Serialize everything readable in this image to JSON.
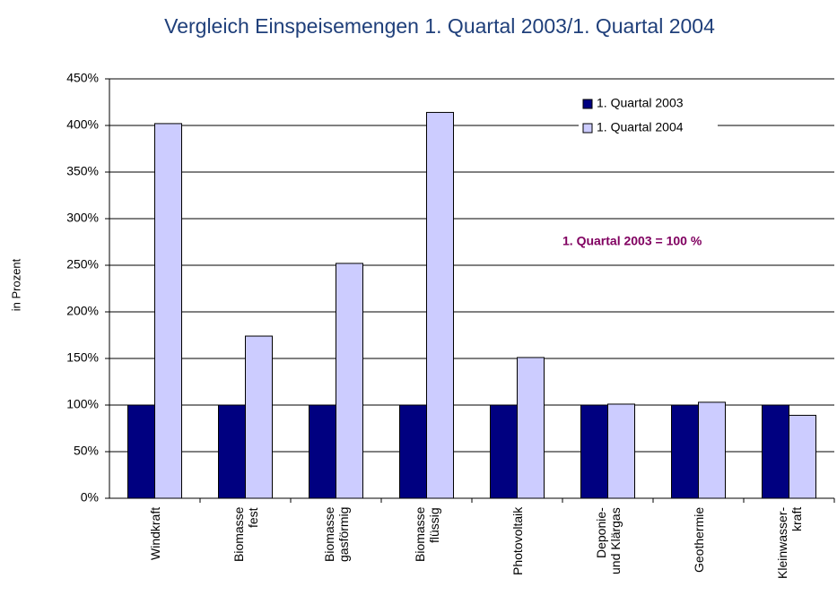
{
  "chart_data": {
    "type": "bar",
    "title": "Vergleich Einspeisemengen 1. Quartal 2003/1. Quartal 2004",
    "y_label": "in Prozent",
    "annotation": "1. Quartal 2003 = 100 %",
    "categories": [
      "Windkraft",
      "Biomasse\nfest",
      "Biomasse\ngasförmig",
      "Biomasse\nflüssig",
      "Photovoltaik",
      "Deponie-\nund Klärgas",
      "Geothermie",
      "Kleinwasser-\nkraft"
    ],
    "series": [
      {
        "name": "1. Quartal 2003",
        "color": "#000080",
        "values": [
          100,
          100,
          100,
          100,
          100,
          100,
          100,
          100
        ]
      },
      {
        "name": "1. Quartal 2004",
        "color": "#ccccff",
        "values": [
          402,
          174,
          252,
          414,
          151,
          101,
          103,
          89
        ]
      }
    ],
    "ylim": [
      0,
      450
    ],
    "yticks": [
      {
        "value": 0,
        "label": "0%"
      },
      {
        "value": 50,
        "label": "50%"
      },
      {
        "value": 100,
        "label": "100%"
      },
      {
        "value": 150,
        "label": "150%"
      },
      {
        "value": 200,
        "label": "200%"
      },
      {
        "value": 250,
        "label": "250%"
      },
      {
        "value": 300,
        "label": "300%"
      },
      {
        "value": 350,
        "label": "350%"
      },
      {
        "value": 400,
        "label": "400%"
      },
      {
        "value": 450,
        "label": "450%"
      }
    ],
    "grid": true,
    "legend": "top-right"
  }
}
